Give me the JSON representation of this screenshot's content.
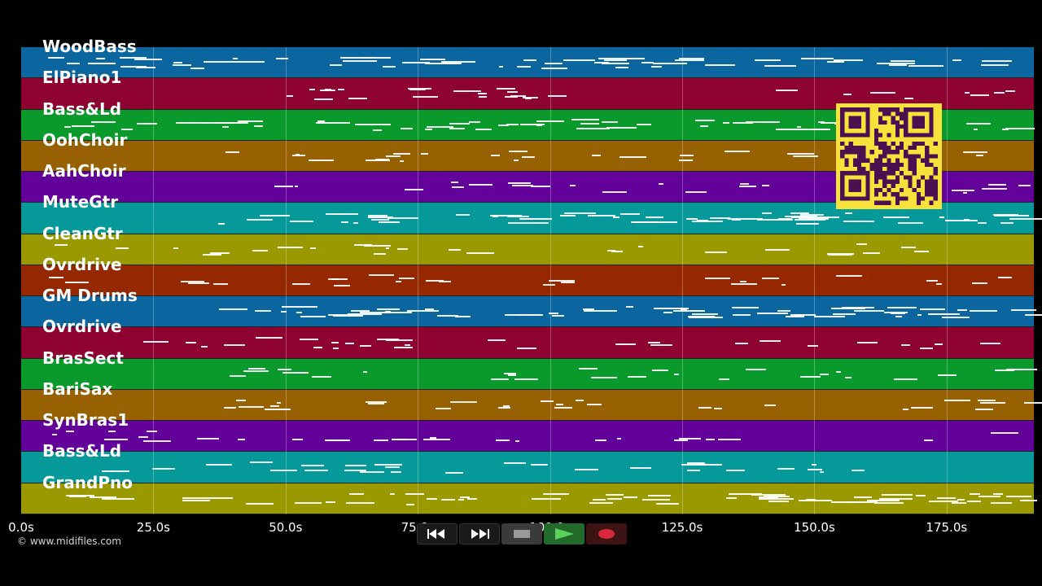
{
  "lanes": [
    {
      "label": "WoodBass",
      "color": "#0b659e"
    },
    {
      "label": "ElPiano1",
      "color": "#8e0231"
    },
    {
      "label": "Bass&Ld",
      "color": "#099a2b"
    },
    {
      "label": "OohChoir",
      "color": "#976000"
    },
    {
      "label": "AahChoir",
      "color": "#63029a"
    },
    {
      "label": "MuteGtr",
      "color": "#069999"
    },
    {
      "label": "CleanGtr",
      "color": "#9a9a00"
    },
    {
      "label": "Ovrdrive",
      "color": "#962800"
    },
    {
      "label": "GM Drums",
      "color": "#0b659e"
    },
    {
      "label": "Ovrdrive",
      "color": "#8e0231"
    },
    {
      "label": "BrasSect",
      "color": "#099a2b"
    },
    {
      "label": "BariSax",
      "color": "#976000"
    },
    {
      "label": "SynBras1",
      "color": "#63029a"
    },
    {
      "label": "Bass&Ld",
      "color": "#069999"
    },
    {
      "label": "GrandPno",
      "color": "#9a9a00"
    }
  ],
  "timeline": {
    "ticks": [
      "0.0s",
      "25.0s",
      "50.0s",
      "75.0s",
      "100.0s",
      "125.0s",
      "150.0s",
      "175.0s"
    ],
    "tick_values": [
      0,
      25,
      50,
      75,
      100,
      125,
      150,
      175
    ],
    "duration_seconds": 191.5
  },
  "copyright": "© www.midifiles.com",
  "transport": {
    "rewind": "rewind-icon",
    "fast_forward": "fast-forward-icon",
    "stop": "stop-icon",
    "play": "play-icon",
    "record": "record-icon"
  },
  "overlay": {
    "qr_code": "qr-code"
  }
}
